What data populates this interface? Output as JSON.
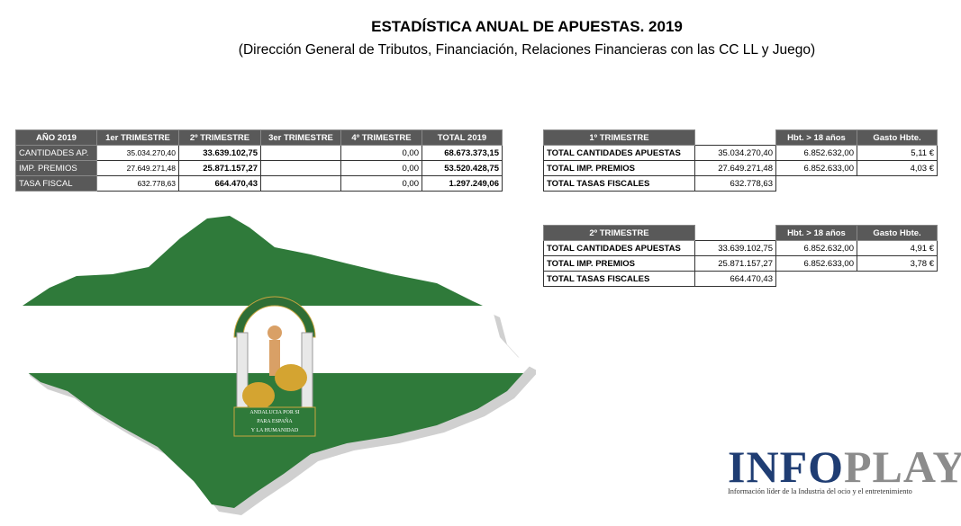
{
  "header": {
    "title": "ESTADÍSTICA ANUAL DE APUESTAS. 2019",
    "subtitle": "(Dirección General de Tributos, Financiación, Relaciones Financieras con las CC LL y Juego)"
  },
  "annual_table": {
    "headers": [
      "AÑO 2019",
      "1er TRIMESTRE",
      "2º TRIMESTRE",
      "3er TRIMESTRE",
      "4º TRIMESTRE",
      "TOTAL 2019"
    ],
    "rows": [
      [
        "CANTIDADES AP.",
        "35.034.270,40",
        "33.639.102,75",
        null,
        "0,00",
        "68.673.373,15"
      ],
      [
        "IMP. PREMIOS",
        "27.649.271,48",
        "25.871.157,27",
        null,
        "0,00",
        "53.520.428,75"
      ],
      [
        "TASA FISCAL",
        "632.778,63",
        "664.470,43",
        null,
        "0,00",
        "1.297.249,06"
      ]
    ]
  },
  "q1_table": {
    "headers": [
      "1º TRIMESTRE",
      null,
      "Hbt. > 18 años",
      "Gasto Hbte."
    ],
    "rows": [
      [
        "TOTAL CANTIDADES APUESTAS",
        "35.034.270,40",
        "6.852.632,00",
        "5,11 €"
      ],
      [
        "TOTAL IMP. PREMIOS",
        "27.649.271,48",
        "6.852.633,00",
        "4,03 €"
      ],
      [
        "TOTAL TASAS FISCALES",
        "632.778,63",
        null,
        null
      ]
    ]
  },
  "q2_table": {
    "headers": [
      "2º TRIMESTRE",
      null,
      "Hbt. > 18 años",
      "Gasto Hbte."
    ],
    "rows": [
      [
        "TOTAL CANTIDADES APUESTAS",
        "33.639.102,75",
        "6.852.632,00",
        "4,91 €"
      ],
      [
        "TOTAL IMP. PREMIOS",
        "25.871.157,27",
        "6.852.633,00",
        "3,78 €"
      ],
      [
        "TOTAL TASAS FISCALES",
        "664.470,43",
        null,
        null
      ]
    ]
  },
  "emblem": {
    "motto_top": "ANDALUCIA POR SI",
    "motto_mid": "PARA ESPAÑA",
    "motto_bottom": "Y LA HUMANIDAD"
  },
  "logo": {
    "brand_a": "INFO",
    "brand_b": "PLAY",
    "tagline": "Información líder de la Industria del ocio y el entretenimiento"
  }
}
